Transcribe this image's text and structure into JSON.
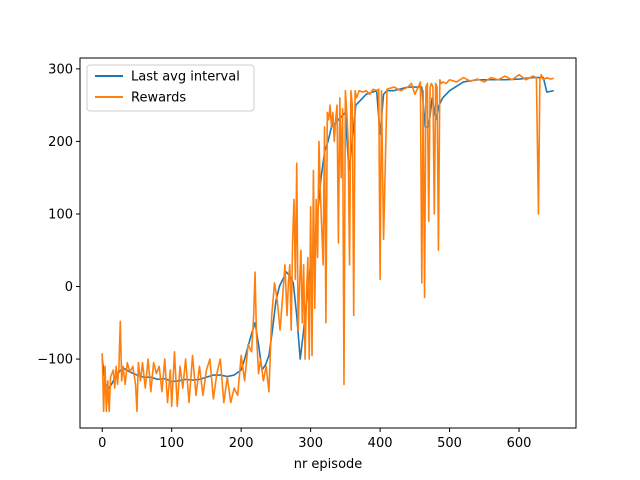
{
  "chart_data": {
    "type": "line",
    "title": "",
    "xlabel": "nr episode",
    "ylabel": "",
    "xlim": [
      -32,
      682
    ],
    "ylim": [
      -195,
      315
    ],
    "xticks": [
      0,
      100,
      200,
      300,
      400,
      500,
      600
    ],
    "yticks": [
      -100,
      0,
      100,
      200,
      300
    ],
    "grid": false,
    "legend_position": "upper-left",
    "series": [
      {
        "name": "Last avg interval",
        "color": "#1f77b4",
        "x": [
          0,
          5,
          10,
          15,
          20,
          30,
          40,
          50,
          60,
          70,
          80,
          90,
          100,
          110,
          120,
          130,
          140,
          150,
          160,
          170,
          180,
          190,
          200,
          205,
          210,
          215,
          220,
          225,
          230,
          235,
          240,
          245,
          250,
          255,
          260,
          265,
          270,
          275,
          280,
          285,
          290,
          295,
          300,
          305,
          310,
          315,
          320,
          325,
          330,
          335,
          340,
          345,
          350,
          355,
          360,
          365,
          370,
          380,
          395,
          400,
          405,
          410,
          420,
          440,
          460,
          465,
          470,
          475,
          480,
          485,
          490,
          500,
          520,
          540,
          560,
          580,
          600,
          620,
          635,
          640,
          650
        ],
        "y": [
          -100,
          -135,
          -140,
          -132,
          -122,
          -112,
          -118,
          -122,
          -125,
          -125,
          -128,
          -127,
          -131,
          -130,
          -128,
          -129,
          -128,
          -125,
          -122,
          -122,
          -124,
          -122,
          -115,
          -100,
          -82,
          -65,
          -50,
          -80,
          -115,
          -108,
          -95,
          -60,
          -20,
          0,
          10,
          20,
          15,
          5,
          -40,
          -100,
          -60,
          -10,
          30,
          50,
          100,
          150,
          185,
          200,
          220,
          225,
          230,
          235,
          240,
          160,
          200,
          250,
          255,
          265,
          270,
          210,
          265,
          270,
          270,
          275,
          275,
          220,
          220,
          260,
          230,
          250,
          260,
          270,
          282,
          285,
          285,
          285,
          286,
          288,
          288,
          268,
          270
        ]
      },
      {
        "name": "Rewards",
        "color": "#ff7f0e",
        "x": [
          0,
          2,
          4,
          6,
          8,
          10,
          12,
          14,
          16,
          18,
          20,
          22,
          24,
          26,
          28,
          30,
          33,
          36,
          40,
          44,
          48,
          50,
          52,
          55,
          58,
          62,
          66,
          70,
          74,
          78,
          82,
          86,
          90,
          94,
          98,
          100,
          104,
          108,
          112,
          116,
          120,
          125,
          130,
          135,
          140,
          145,
          150,
          155,
          160,
          165,
          170,
          175,
          180,
          185,
          190,
          195,
          200,
          205,
          210,
          215,
          218,
          220,
          222,
          225,
          228,
          232,
          236,
          240,
          244,
          248,
          252,
          256,
          260,
          263,
          266,
          268,
          270,
          272,
          274,
          276,
          278,
          280,
          282,
          284,
          286,
          288,
          290,
          292,
          294,
          296,
          298,
          300,
          302,
          304,
          306,
          308,
          310,
          312,
          314,
          316,
          318,
          320,
          322,
          324,
          326,
          328,
          330,
          332,
          334,
          336,
          338,
          340,
          342,
          344,
          346,
          348,
          350,
          352,
          354,
          356,
          358,
          360,
          362,
          364,
          366,
          368,
          370,
          375,
          380,
          385,
          390,
          395,
          398,
          400,
          402,
          405,
          410,
          420,
          430,
          440,
          445,
          450,
          455,
          458,
          460,
          462,
          464,
          466,
          468,
          470,
          472,
          474,
          476,
          478,
          480,
          482,
          484,
          486,
          488,
          490,
          495,
          500,
          510,
          520,
          530,
          540,
          550,
          560,
          570,
          580,
          590,
          600,
          610,
          620,
          625,
          628,
          630,
          632,
          635,
          640,
          645,
          650
        ],
        "y": [
          -92,
          -172,
          -110,
          -172,
          -130,
          -172,
          -125,
          -120,
          -115,
          -140,
          -110,
          -135,
          -112,
          -48,
          -130,
          -110,
          -135,
          -105,
          -118,
          -110,
          -135,
          -172,
          -105,
          -130,
          -105,
          -140,
          -100,
          -145,
          -105,
          -120,
          -110,
          -145,
          -100,
          -160,
          -115,
          -165,
          -90,
          -165,
          -110,
          -140,
          -100,
          -160,
          -95,
          -150,
          -110,
          -150,
          -115,
          -100,
          -155,
          -120,
          -100,
          -160,
          -125,
          -160,
          -140,
          -150,
          -95,
          -130,
          -80,
          -90,
          -40,
          20,
          -65,
          -120,
          -100,
          -130,
          -110,
          -145,
          -40,
          5,
          -20,
          -60,
          -10,
          30,
          -40,
          5,
          30,
          -60,
          60,
          120,
          10,
          170,
          -60,
          0,
          50,
          -50,
          30,
          -100,
          -10,
          40,
          -100,
          110,
          -95,
          160,
          -30,
          120,
          40,
          200,
          130,
          80,
          30,
          220,
          -50,
          240,
          230,
          250,
          220,
          240,
          200,
          230,
          250,
          60,
          260,
          150,
          245,
          -135,
          270,
          240,
          200,
          30,
          270,
          250,
          -40,
          270,
          260,
          265,
          270,
          268,
          270,
          265,
          272,
          270,
          272,
          10,
          270,
          65,
          272,
          275,
          270,
          275,
          280,
          265,
          275,
          282,
          5,
          270,
          -15,
          275,
          280,
          90,
          275,
          280,
          275,
          100,
          280,
          275,
          50,
          285,
          280,
          282,
          280,
          285,
          282,
          288,
          283,
          286,
          282,
          288,
          285,
          290,
          285,
          292,
          285,
          290,
          288,
          100,
          285,
          292,
          285,
          288,
          286,
          287
        ]
      }
    ]
  }
}
